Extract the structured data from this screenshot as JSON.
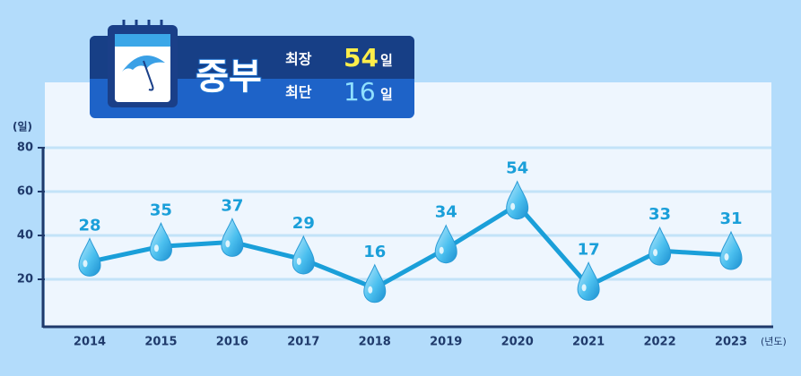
{
  "chart_data": {
    "type": "line",
    "region": "중부",
    "longest_label": "최장",
    "longest_value": 54,
    "shortest_label": "최단",
    "shortest_value": 16,
    "unit": "일",
    "y_label": "(일)",
    "x_label": "(년도)",
    "categories": [
      "2014",
      "2015",
      "2016",
      "2017",
      "2018",
      "2019",
      "2020",
      "2021",
      "2022",
      "2023"
    ],
    "values": [
      28,
      35,
      37,
      29,
      16,
      34,
      54,
      17,
      33,
      31
    ],
    "color": "#1a9fd9",
    "ylim": [
      0,
      80
    ],
    "yticks": [
      20,
      40,
      60,
      80
    ],
    "grid": true
  }
}
